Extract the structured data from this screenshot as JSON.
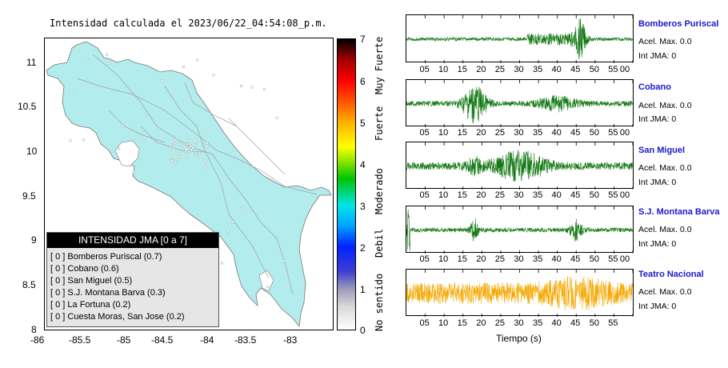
{
  "map": {
    "title": "Intensidad calculada el 2023/06/22_04:54:08_p.m.",
    "x_ticks": [
      "-86",
      "-85.5",
      "-85",
      "-84.5",
      "-84",
      "-83.5",
      "-83"
    ],
    "y_ticks": [
      "11",
      "10.5",
      "10",
      "9.5",
      "9",
      "8.5",
      "8"
    ],
    "land_color": "#b3ecec",
    "legend": {
      "title": "INTENSIDAD JMA [0 a 7]",
      "rows": [
        "[ 0 ]  Bomberos Puriscal (0.7)",
        "[ 0 ]  Cobano (0.6)",
        "[ 0 ]  San Miguel (0.5)",
        "[ 0 ]  S.J. Montana Barva (0.3)",
        "[ 0 ]  La Fortuna (0.2)",
        "[ 0 ]  Cuesta Moras, San Jose (0.2)"
      ]
    }
  },
  "colorbar": {
    "numbers": [
      "7",
      "6",
      "5",
      "4",
      "3",
      "2",
      "1",
      "0"
    ],
    "labels": [
      "Muy Fuerte",
      "Fuerte",
      "Moderado",
      "Debil",
      "No sentido"
    ]
  },
  "seismograms": {
    "time_ticks": [
      "05",
      "10",
      "15",
      "20",
      "25",
      "30",
      "35",
      "40",
      "45",
      "50",
      "55",
      "00"
    ],
    "last_time_ticks": [
      "05",
      "10",
      "15",
      "20",
      "25",
      "30",
      "35",
      "40",
      "45",
      "50",
      "55"
    ],
    "xlabel": "Tiempo (s)",
    "trace_color": "#117711",
    "highlight_color": "#f5a800",
    "stations": [
      {
        "name": "Bomberos Puriscal",
        "acel": "Acel. Max. 0.0",
        "int": "Int JMA: 0"
      },
      {
        "name": "Cobano",
        "acel": "Acel. Max. 0.0",
        "int": "Int JMA: 0"
      },
      {
        "name": "San Miguel",
        "acel": "Acel. Max. 0.0",
        "int": "Int JMA: 0"
      },
      {
        "name": "S.J. Montana Barva",
        "acel": "Acel. Max. 0.0",
        "int": "Int JMA: 0"
      },
      {
        "name": "Teatro Nacional",
        "acel": "Acel. Max. 0.0",
        "int": "Int JMA: 0"
      }
    ]
  }
}
